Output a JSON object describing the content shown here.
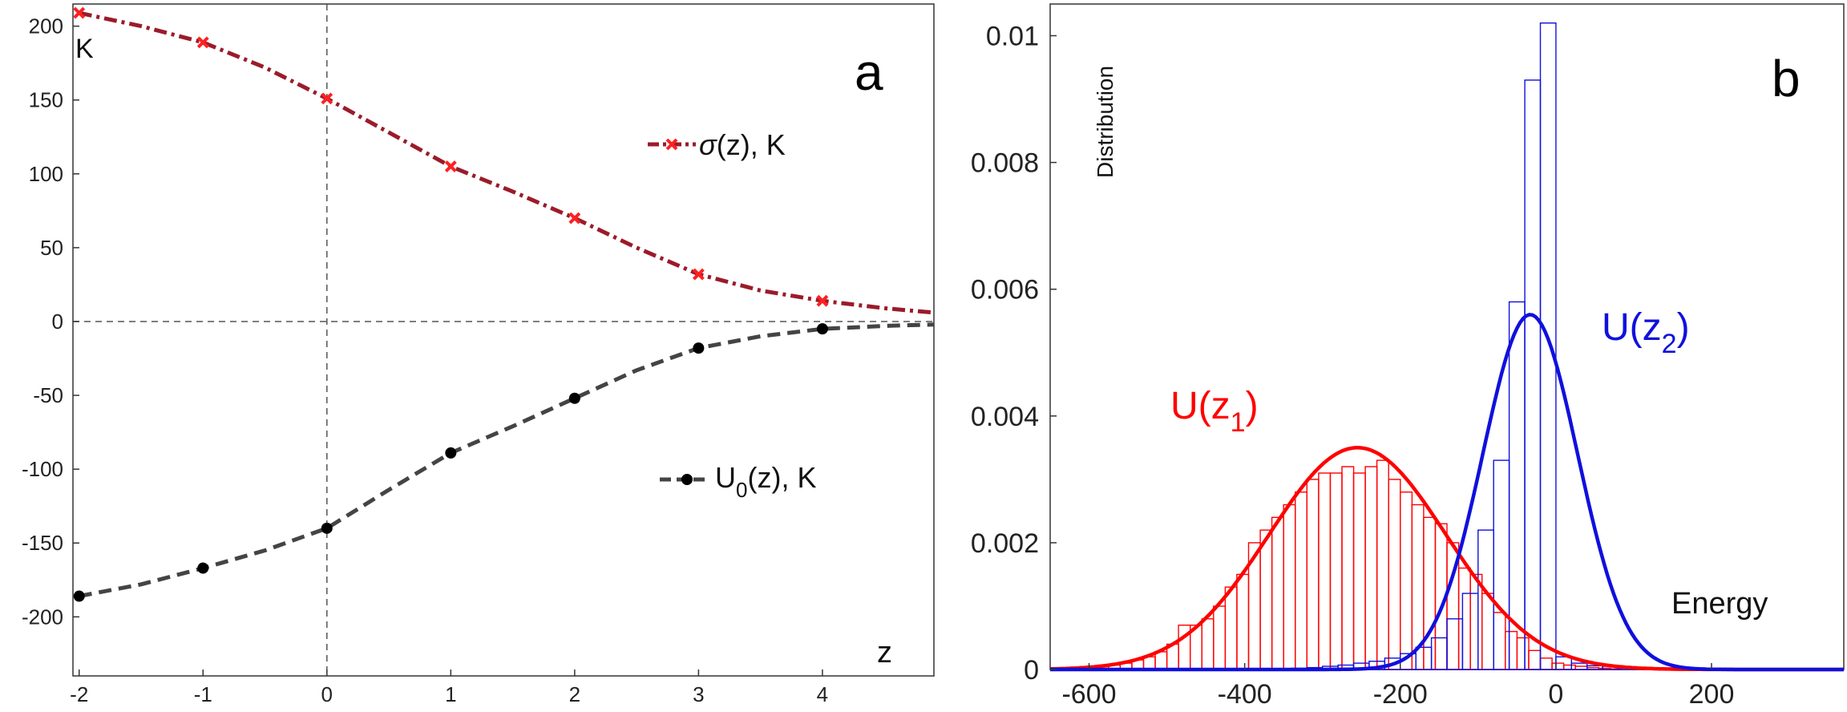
{
  "chart_data": [
    {
      "panel": "a",
      "type": "line",
      "xlabel": "z",
      "ylabel": "K",
      "xlim": [
        -2.05,
        4.9
      ],
      "ylim": [
        -240,
        215
      ],
      "xticks": [
        -2,
        -1,
        0,
        1,
        2,
        3,
        4
      ],
      "yticks": [
        200,
        150,
        100,
        50,
        0,
        -50,
        -100,
        -150,
        -200
      ],
      "reference_lines": {
        "x": 0,
        "y": 0
      },
      "series": [
        {
          "name": "σ(z), K",
          "legend_prefix": "σ",
          "legend_suffix": "(z), K",
          "color": "#9b1b2a",
          "marker_color": "#ff2020",
          "style": "dash-dot",
          "marker": "x",
          "x": [
            -2,
            -1,
            0,
            1,
            2,
            3,
            4
          ],
          "y": [
            209,
            189,
            151,
            105,
            70,
            32,
            14
          ],
          "curve_x": [
            -2,
            -1.5,
            -1,
            -0.5,
            0,
            0.5,
            1,
            1.5,
            2,
            2.5,
            3,
            3.5,
            4,
            4.5,
            4.9
          ],
          "curve_y": [
            209,
            200,
            189,
            172,
            151,
            128,
            105,
            88,
            70,
            50,
            32,
            21,
            14,
            9,
            6
          ]
        },
        {
          "name": "U0(z), K",
          "legend_prefix": "U",
          "legend_sub": "0",
          "legend_suffix": "(z), K",
          "color": "#444444",
          "marker_color": "#000000",
          "style": "dashed",
          "marker": "o",
          "x": [
            -2,
            -1,
            0,
            1,
            2,
            3,
            4
          ],
          "y": [
            -186,
            -167,
            -140,
            -89,
            -52,
            -18,
            -5
          ],
          "curve_x": [
            -2,
            -1.5,
            -1,
            -0.5,
            0,
            0.5,
            1,
            1.5,
            2,
            2.5,
            3,
            3.5,
            4,
            4.5,
            4.9
          ],
          "curve_y": [
            -186,
            -178,
            -167,
            -155,
            -140,
            -114,
            -89,
            -71,
            -52,
            -33,
            -18,
            -10,
            -5,
            -3,
            -2
          ]
        }
      ]
    },
    {
      "panel": "b",
      "type": "histogram",
      "xlabel": "Energy",
      "ylabel": "Distribution",
      "xlim": [
        -650,
        370
      ],
      "ylim": [
        0,
        0.0105
      ],
      "xticks": [
        -600,
        -400,
        -200,
        0,
        200
      ],
      "yticks": [
        0,
        0.002,
        0.004,
        0.006,
        0.008,
        0.01
      ],
      "ytick_labels": [
        "0",
        "0.002",
        "0.004",
        "0.006",
        "0.008",
        "0.01"
      ],
      "series": [
        {
          "name": "U(z1)",
          "label_main": "U(z",
          "label_sub": "1",
          "label_end": ")",
          "color": "#ff0000",
          "bin_width": 15,
          "bin_starts": [
            -590,
            -575,
            -560,
            -545,
            -530,
            -515,
            -500,
            -485,
            -470,
            -455,
            -440,
            -425,
            -410,
            -395,
            -380,
            -365,
            -350,
            -335,
            -320,
            -305,
            -290,
            -275,
            -260,
            -245,
            -230,
            -215,
            -200,
            -185,
            -170,
            -155,
            -140,
            -125,
            -110,
            -95,
            -80,
            -65,
            -50,
            -35,
            -20,
            -5,
            10,
            25,
            40,
            55,
            70
          ],
          "counts": [
            5e-05,
            7e-05,
            0.0001,
            0.00015,
            0.0002,
            0.00028,
            0.0004,
            0.0007,
            0.0007,
            0.0008,
            0.001,
            0.0013,
            0.0015,
            0.002,
            0.0022,
            0.0024,
            0.0026,
            0.0028,
            0.003,
            0.0031,
            0.0031,
            0.0032,
            0.0031,
            0.0032,
            0.0033,
            0.003,
            0.0028,
            0.0026,
            0.0024,
            0.0023,
            0.002,
            0.0016,
            0.0015,
            0.0012,
            0.0009,
            0.0006,
            0.0005,
            0.0003,
            0.00018,
            0.0001,
            7e-05,
            5e-05,
            3e-05,
            2e-05,
            1e-05
          ],
          "fit": {
            "mean": -255,
            "sd": 114,
            "peak": 0.0035
          }
        },
        {
          "name": "U(z2)",
          "label_main": "U(z",
          "label_sub": "2",
          "label_end": ")",
          "color": "#1010dd",
          "bin_width": 20,
          "bin_starts": [
            -340,
            -320,
            -300,
            -280,
            -260,
            -240,
            -220,
            -200,
            -180,
            -160,
            -140,
            -120,
            -100,
            -80,
            -60,
            -40,
            -20,
            0,
            20,
            40,
            60,
            80,
            100,
            120,
            140,
            160,
            180
          ],
          "counts": [
            2e-05,
            3e-05,
            5e-05,
            7e-05,
            0.0001,
            0.00013,
            0.00018,
            0.00025,
            0.00035,
            0.0005,
            0.0008,
            0.0012,
            0.0022,
            0.0033,
            0.0058,
            0.0093,
            0.0102,
            0.0002,
            0.0001,
            6e-05,
            5e-05,
            4e-05,
            3e-05,
            2e-05,
            2e-05,
            1e-05,
            1e-05
          ],
          "fit": {
            "mean": -33,
            "sd": 61,
            "peak": 0.0056
          }
        }
      ]
    }
  ]
}
